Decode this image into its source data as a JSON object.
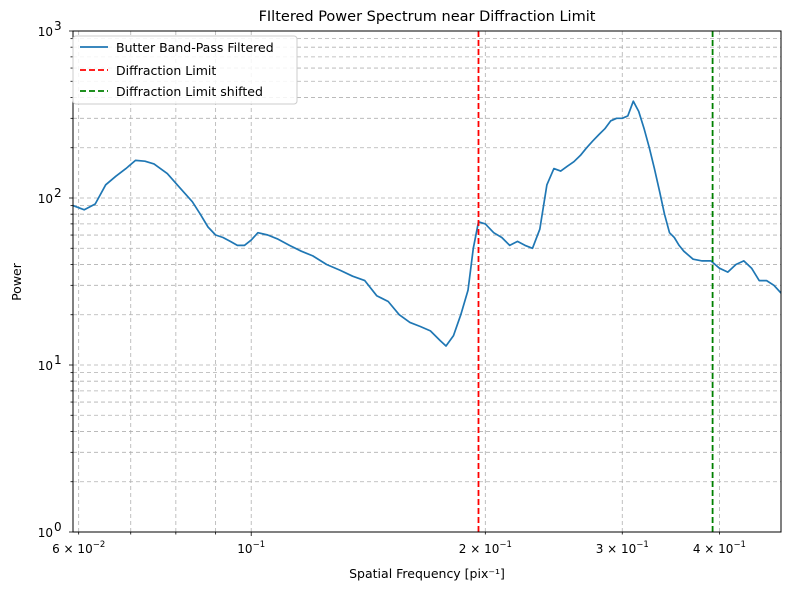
{
  "chart_data": {
    "type": "line",
    "title": "FIltered Power Spectrum near Diffraction Limit",
    "xlabel": "Spatial Frequency [pix⁻¹]",
    "ylabel": "Power",
    "xscale": "log",
    "yscale": "log",
    "xlim": [
      0.059,
      0.48
    ],
    "ylim": [
      1,
      1000
    ],
    "grid": "both (major and minor), dashed grey",
    "legend_position": "top-left",
    "x_tick_labels": [
      {
        "value": 0.06,
        "base": "6 × 10",
        "exp": "−2"
      },
      {
        "value": 0.1,
        "base": "10",
        "exp": "−1"
      },
      {
        "value": 0.2,
        "base": "2 × 10",
        "exp": "−1"
      },
      {
        "value": 0.3,
        "base": "3 × 10",
        "exp": "−1"
      },
      {
        "value": 0.4,
        "base": "4 × 10",
        "exp": "−1"
      }
    ],
    "y_tick_labels": [
      {
        "value": 1,
        "base": "10",
        "exp": "0"
      },
      {
        "value": 10,
        "base": "10",
        "exp": "1"
      },
      {
        "value": 100,
        "base": "10",
        "exp": "2"
      },
      {
        "value": 1000,
        "base": "10",
        "exp": "3"
      }
    ],
    "series": [
      {
        "name": "Butter Band-Pass Filtered",
        "color": "#1f77b4",
        "style": "solid",
        "x": [
          0.059,
          0.061,
          0.063,
          0.065,
          0.067,
          0.069,
          0.071,
          0.073,
          0.075,
          0.078,
          0.081,
          0.084,
          0.086,
          0.088,
          0.09,
          0.092,
          0.094,
          0.096,
          0.098,
          0.1,
          0.102,
          0.105,
          0.108,
          0.112,
          0.116,
          0.12,
          0.125,
          0.13,
          0.135,
          0.14,
          0.145,
          0.15,
          0.155,
          0.16,
          0.165,
          0.17,
          0.175,
          0.178,
          0.182,
          0.186,
          0.19,
          0.193,
          0.196,
          0.2,
          0.205,
          0.21,
          0.215,
          0.22,
          0.225,
          0.23,
          0.235,
          0.24,
          0.245,
          0.25,
          0.255,
          0.26,
          0.265,
          0.27,
          0.275,
          0.28,
          0.285,
          0.29,
          0.295,
          0.3,
          0.305,
          0.31,
          0.315,
          0.32,
          0.325,
          0.33,
          0.335,
          0.34,
          0.345,
          0.35,
          0.355,
          0.36,
          0.37,
          0.38,
          0.39,
          0.4,
          0.41,
          0.42,
          0.43,
          0.44,
          0.45,
          0.46,
          0.47,
          0.48
        ],
        "y": [
          90,
          85,
          92,
          120,
          135,
          150,
          168,
          166,
          160,
          140,
          115,
          95,
          80,
          67,
          60,
          58,
          55,
          52,
          52,
          56,
          62,
          60,
          57,
          52,
          48,
          45,
          40,
          37,
          34,
          32,
          26,
          24,
          20,
          18,
          17,
          16,
          14,
          13,
          15,
          20,
          28,
          50,
          72,
          70,
          62,
          58,
          52,
          55,
          52,
          50,
          65,
          120,
          150,
          145,
          155,
          165,
          180,
          200,
          220,
          240,
          260,
          290,
          300,
          300,
          310,
          380,
          330,
          260,
          200,
          150,
          110,
          80,
          62,
          58,
          52,
          48,
          43,
          42,
          42,
          38,
          36,
          40,
          42,
          38,
          32,
          32,
          30,
          27
        ]
      },
      {
        "name": "Diffraction Limit",
        "color": "#ff0000",
        "style": "dashed",
        "vline_x": 0.196
      },
      {
        "name": "Diffraction Limit shifted",
        "color": "#008000",
        "style": "dashed",
        "vline_x": 0.392
      }
    ]
  }
}
